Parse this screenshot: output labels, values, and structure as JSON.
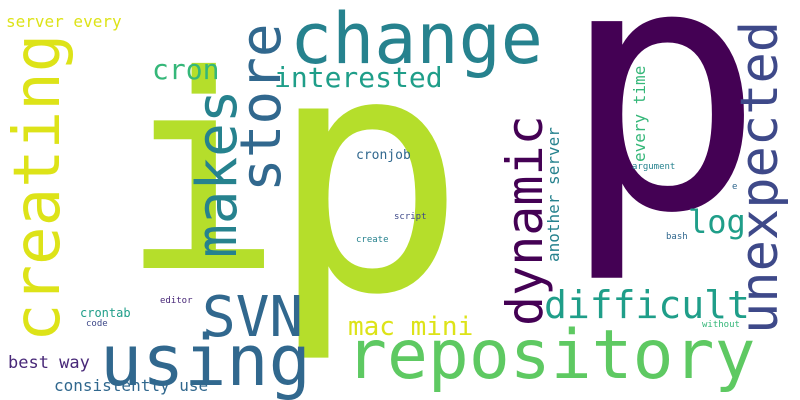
{
  "palette": {
    "lime": "#b5de2b",
    "purple": "#440154",
    "teal": "#26828e",
    "blue": "#31688e",
    "green": "#35b779",
    "light_green": "#5ec962",
    "yellow": "#dde318",
    "dark_purple": "#482878",
    "sea": "#1f9e89",
    "indigo": "#3e4989"
  },
  "words": {
    "ip_i": "i",
    "ip_p1": "p",
    "ip_p2": "p",
    "change": "change",
    "repository": "repository",
    "creating": "creating",
    "unexpected": "unexpected",
    "using": "using",
    "dynamic": "dynamic",
    "makes": "makes",
    "store": "store",
    "svn": "SVN",
    "difficult": "difficult",
    "interested": "interested",
    "cron": "cron",
    "mac_mini": "mac mini",
    "log": "log",
    "server_every": "server every",
    "best_way": "best way",
    "consistently_use": "consistently use",
    "every_time": "every time",
    "another_server": "another server",
    "cronjob": "cronjob",
    "crontab": "crontab",
    "code": "code",
    "editor": "editor",
    "script": "script",
    "create": "create",
    "argument": "argument",
    "bash": "bash",
    "without": "without",
    "e": "e"
  }
}
